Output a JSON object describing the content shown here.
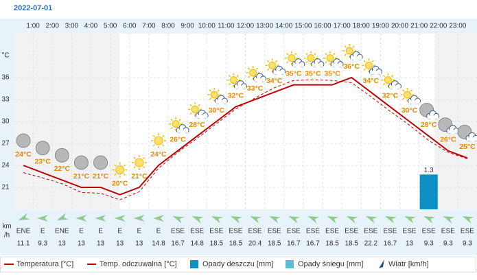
{
  "chart_data": {
    "type": "line",
    "date": "2022-07-01",
    "y_unit": "°C",
    "categories": [
      null,
      "1:00",
      "2:00",
      "3:00",
      "4:00",
      "5:00",
      "6:00",
      "7:00",
      "8:00",
      "9:00",
      "10:00",
      "11:00",
      "12:00",
      "13:00",
      "14:00",
      "15:00",
      "16:00",
      "17:00",
      "18:00",
      "19:00",
      "20:00",
      "21:00",
      "22:00",
      "23:00"
    ],
    "ylim": [
      18,
      42
    ],
    "yticks": [
      21,
      24,
      27,
      30,
      33,
      36
    ],
    "grid": true,
    "series": [
      {
        "name": "Temperatura [°C]",
        "color": "#c00000",
        "values": [
          24,
          23,
          22,
          21,
          21,
          20,
          21,
          24,
          26,
          28,
          30,
          32,
          33,
          34,
          35,
          35,
          35,
          36,
          34,
          32,
          30,
          28,
          26,
          25
        ],
        "value_labels": [
          "24°C",
          "23°C",
          "22°C",
          "21°C",
          "21°C",
          "20°C",
          "21°C",
          "24°C",
          "26°C",
          "28°C",
          "30°C",
          "32°C",
          "33°C",
          "34°C",
          "35°C",
          "35°C",
          "35°C",
          "36°C",
          "34°C",
          "32°C",
          "30°C",
          "28°C",
          "26°C",
          "25°C"
        ]
      },
      {
        "name": "Temp. odczuwalna [°C]",
        "color": "#c00000",
        "dashed": true,
        "values": [
          23,
          22.3,
          21.5,
          20.3,
          20.2,
          19.3,
          20.4,
          23.6,
          25.8,
          27.7,
          29.7,
          31.7,
          33.2,
          34.6,
          35.6,
          35.7,
          35.6,
          35.3,
          33.4,
          31.4,
          29.5,
          27.4,
          25.8,
          24.9
        ]
      }
    ],
    "rain": {
      "name": "Opady deszczu [mm]",
      "color": "#0b8fc4",
      "values": [
        0,
        0,
        0,
        0,
        0,
        0,
        0,
        0,
        0,
        0,
        0,
        0,
        0,
        0,
        0,
        0,
        0,
        0,
        0,
        0,
        0,
        1.3,
        0,
        0
      ]
    },
    "snow": {
      "name": "Opady śniegu [mm]",
      "color": "#5cbcd4"
    },
    "wind": {
      "name": "Wiatr [km/h]",
      "unit": [
        "km",
        "/h"
      ],
      "color": "#8fc98f",
      "directions": [
        "ENE",
        "E",
        "ENE",
        "E",
        "E",
        "E",
        "E",
        "E",
        "ESE",
        "ESE",
        "ESE",
        "ESE",
        "ESE",
        "ESE",
        "ESE",
        "ESE",
        "ESE",
        "ESE",
        "ESE",
        "ESE",
        "ESE",
        "ESE",
        "ESE",
        "ESE"
      ],
      "speeds": [
        11.1,
        9.3,
        13,
        13,
        13,
        13,
        13,
        14.8,
        16.7,
        14.8,
        18.5,
        18.5,
        20.4,
        18.5,
        16.7,
        16.7,
        18.5,
        18.5,
        22.2,
        16.7,
        13,
        9.3,
        9.3,
        9.3
      ]
    }
  }
}
